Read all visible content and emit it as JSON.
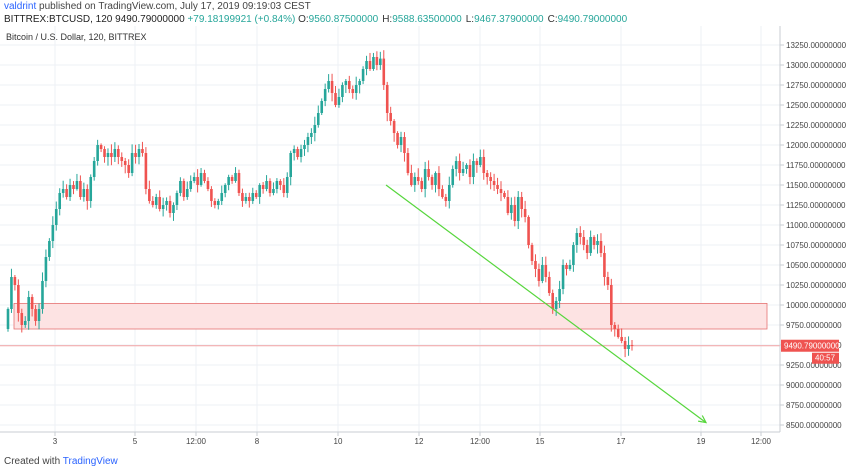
{
  "header": {
    "user": "valdrint",
    "published": "published on TradingView.com, July 17, 2019 09:19:03 CEST",
    "symbol": "BITTREX:BTCUSD, 120",
    "last": "9490.79000000",
    "change": "+79.18199921 (+0.84%)",
    "o_label": "O:",
    "o": "9560.87500000",
    "h_label": "H:",
    "h": "9588.63500000",
    "l_label": "L:",
    "l": "9467.37900000",
    "c_label": "C:",
    "c": "9490.79000000"
  },
  "footer": {
    "created": "Created with",
    "brand": "TradingView"
  },
  "colors": {
    "up": "#26a69a",
    "down": "#ef5350",
    "zone_fill": "#fde3e3",
    "zone_stroke": "#e57373",
    "trend": "#57d63d",
    "grid": "#eef1f5",
    "axis_text": "#444444",
    "price_tag": "#ef5350"
  },
  "chart_data": {
    "type": "candlestick",
    "title": "Bitcoin / U.S. Dollar, 120, BITTREX",
    "ylim": [
      8450,
      13350
    ],
    "y_ticks": [
      "13250.00000000",
      "13000.00000000",
      "12750.00000000",
      "12500.00000000",
      "12250.00000000",
      "12000.00000000",
      "11750.00000000",
      "11500.00000000",
      "11250.00000000",
      "11000.00000000",
      "10750.00000000",
      "10500.00000000",
      "10250.00000000",
      "10000.00000000",
      "9750.00000000",
      "9500.00000000",
      "9250.00000000",
      "9000.00000000",
      "8750.00000000",
      "8500.00000000"
    ],
    "x_ticks": [
      "3",
      "5",
      "12:00",
      "8",
      "10",
      "12",
      "12:00",
      "15",
      "17",
      "19",
      "12:00"
    ],
    "closes": [
      9950,
      10350,
      10250,
      9900,
      9750,
      9800,
      10100,
      9950,
      9800,
      9950,
      10300,
      10600,
      10800,
      11000,
      11200,
      11400,
      11450,
      11350,
      11500,
      11450,
      11550,
      11350,
      11450,
      11300,
      11600,
      11800,
      12000,
      11950,
      11850,
      11900,
      11850,
      11950,
      11850,
      11800,
      11750,
      11650,
      11900,
      11850,
      11950,
      11900,
      11450,
      11300,
      11250,
      11350,
      11200,
      11250,
      11300,
      11150,
      11250,
      11400,
      11550,
      11350,
      11450,
      11550,
      11600,
      11500,
      11650,
      11550,
      11450,
      11300,
      11250,
      11300,
      11400,
      11500,
      11600,
      11550,
      11650,
      11400,
      11300,
      11350,
      11300,
      11400,
      11350,
      11500,
      11450,
      11550,
      11400,
      11450,
      11550,
      11500,
      11400,
      11600,
      11900,
      11950,
      11850,
      11950,
      12000,
      12100,
      12150,
      12250,
      12400,
      12550,
      12700,
      12800,
      12650,
      12500,
      12600,
      12750,
      12800,
      12700,
      12650,
      12750,
      12800,
      12950,
      13050,
      12950,
      13100,
      13000,
      13080,
      12750,
      12400,
      12300,
      12150,
      12000,
      12100,
      11900,
      11650,
      11500,
      11600,
      11550,
      11450,
      11700,
      11600,
      11500,
      11650,
      11450,
      11350,
      11300,
      11500,
      11700,
      11800,
      11650,
      11700,
      11750,
      11600,
      11800,
      11750,
      11850,
      11650,
      11600,
      11550,
      11500,
      11450,
      11400,
      11350,
      11150,
      11250,
      11050,
      11350,
      11200,
      11100,
      10750,
      10550,
      10450,
      10300,
      10500,
      10350,
      10150,
      9950,
      10050,
      10200,
      10500,
      10450,
      10500,
      10750,
      10900,
      10850,
      10750,
      10650,
      10850,
      10750,
      10800,
      10650,
      10350,
      10250,
      9750,
      9700,
      9600,
      9550,
      9450,
      9500,
      9490.79
    ],
    "zone": [
      9700,
      10020
    ],
    "last_price": 9490.79,
    "trend_line": [
      {
        "x": 386,
        "y": 11500
      },
      {
        "x": 620,
        "y": 9250
      },
      {
        "x": 706,
        "y": 8530
      }
    ]
  }
}
